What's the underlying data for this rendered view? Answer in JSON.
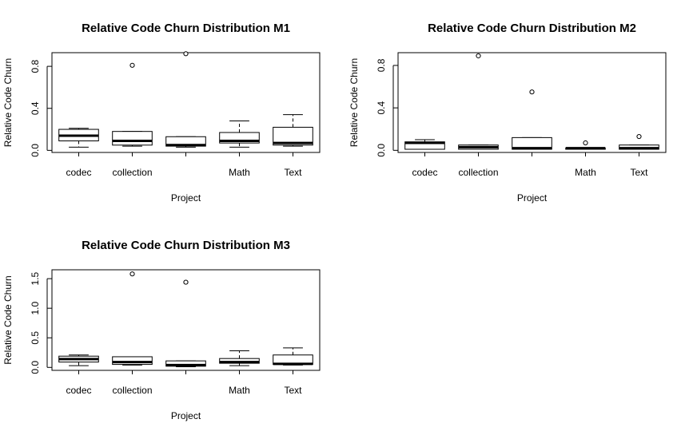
{
  "chart_data": [
    {
      "type": "boxplot",
      "title": "Relative Code Churn Distribution M1",
      "xlabel": "Project",
      "ylabel": "Relative Code Churn",
      "categories": [
        "codec",
        "collection",
        "",
        "Math",
        "Text"
      ],
      "yticks": [
        "0.0",
        "0.4",
        "0.8"
      ],
      "ytick_values": [
        0.0,
        0.4,
        0.8
      ],
      "ylim": [
        -0.02,
        0.93
      ],
      "boxes": [
        {
          "min": 0.03,
          "q1": 0.09,
          "median": 0.14,
          "q3": 0.2,
          "max": 0.21,
          "outliers": []
        },
        {
          "min": 0.04,
          "q1": 0.05,
          "median": 0.09,
          "q3": 0.18,
          "max": 0.18,
          "outliers": [
            0.81
          ]
        },
        {
          "min": 0.03,
          "q1": 0.04,
          "median": 0.05,
          "q3": 0.13,
          "max": 0.13,
          "outliers": [
            0.92
          ]
        },
        {
          "min": 0.03,
          "q1": 0.07,
          "median": 0.09,
          "q3": 0.17,
          "max": 0.28,
          "outliers": []
        },
        {
          "min": 0.04,
          "q1": 0.05,
          "median": 0.07,
          "q3": 0.22,
          "max": 0.34,
          "outliers": []
        }
      ]
    },
    {
      "type": "boxplot",
      "title": "Relative Code Churn Distribution M2",
      "xlabel": "Project",
      "ylabel": "Relative Code Churn",
      "categories": [
        "codec",
        "collection",
        "",
        "Math",
        "Text"
      ],
      "yticks": [
        "0.0",
        "0.4",
        "0.8"
      ],
      "ytick_values": [
        0.0,
        0.4,
        0.8
      ],
      "ylim": [
        -0.02,
        0.92
      ],
      "boxes": [
        {
          "min": 0.01,
          "q1": 0.01,
          "median": 0.07,
          "q3": 0.08,
          "max": 0.1,
          "outliers": []
        },
        {
          "min": 0.01,
          "q1": 0.01,
          "median": 0.03,
          "q3": 0.05,
          "max": 0.05,
          "outliers": [
            0.89
          ]
        },
        {
          "min": 0.01,
          "q1": 0.01,
          "median": 0.02,
          "q3": 0.12,
          "max": 0.12,
          "outliers": [
            0.55
          ]
        },
        {
          "min": 0.01,
          "q1": 0.01,
          "median": 0.02,
          "q3": 0.02,
          "max": 0.02,
          "outliers": [
            0.07
          ]
        },
        {
          "min": 0.01,
          "q1": 0.01,
          "median": 0.02,
          "q3": 0.05,
          "max": 0.05,
          "outliers": [
            0.13
          ]
        }
      ]
    },
    {
      "type": "boxplot",
      "title": "Relative Code Churn Distribution M3",
      "xlabel": "Project",
      "ylabel": "Relative Code Churn",
      "categories": [
        "codec",
        "collection",
        "",
        "Math",
        "Text"
      ],
      "yticks": [
        "0.0",
        "0.5",
        "1.0",
        "1.5"
      ],
      "ytick_values": [
        0.0,
        0.5,
        1.0,
        1.5
      ],
      "ylim": [
        -0.05,
        1.65
      ],
      "boxes": [
        {
          "min": 0.03,
          "q1": 0.09,
          "median": 0.14,
          "q3": 0.19,
          "max": 0.21,
          "outliers": []
        },
        {
          "min": 0.04,
          "q1": 0.05,
          "median": 0.09,
          "q3": 0.18,
          "max": 0.18,
          "outliers": [
            1.58
          ]
        },
        {
          "min": 0.01,
          "q1": 0.02,
          "median": 0.04,
          "q3": 0.11,
          "max": 0.11,
          "outliers": [
            1.44
          ]
        },
        {
          "min": 0.03,
          "q1": 0.07,
          "median": 0.09,
          "q3": 0.15,
          "max": 0.28,
          "outliers": []
        },
        {
          "min": 0.04,
          "q1": 0.05,
          "median": 0.06,
          "q3": 0.21,
          "max": 0.33,
          "outliers": []
        }
      ]
    }
  ]
}
